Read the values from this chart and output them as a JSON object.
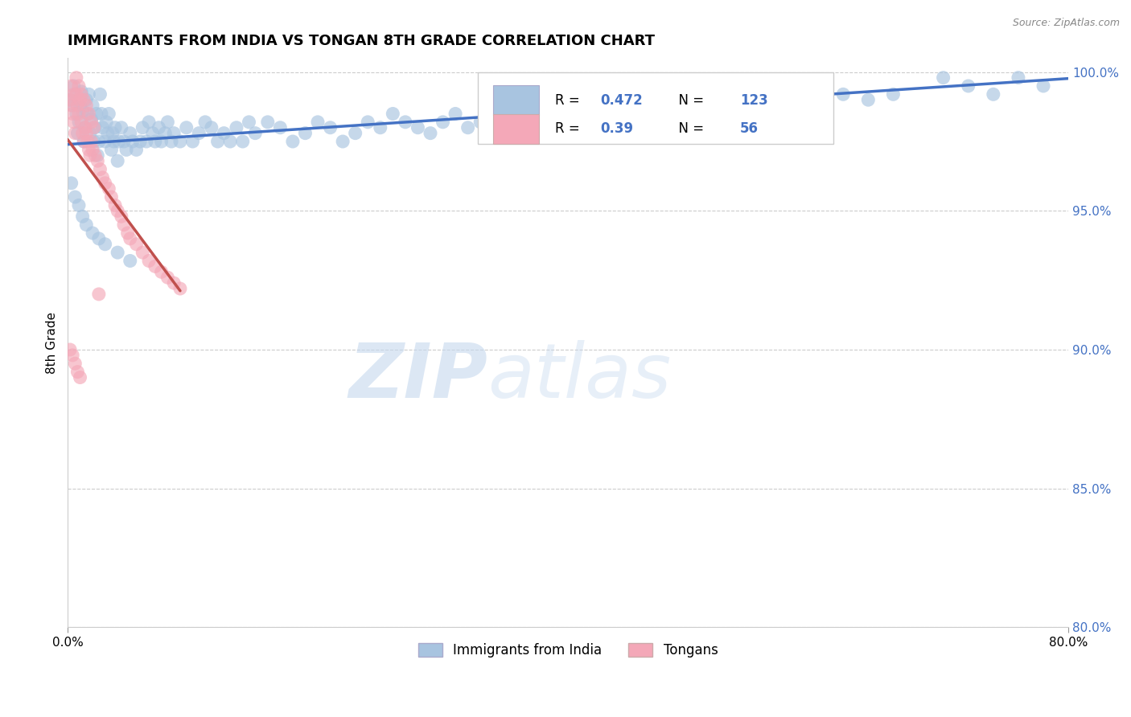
{
  "title": "IMMIGRANTS FROM INDIA VS TONGAN 8TH GRADE CORRELATION CHART",
  "source": "Source: ZipAtlas.com",
  "ylabel": "8th Grade",
  "xlim": [
    0.0,
    0.8
  ],
  "ylim": [
    0.8,
    1.005
  ],
  "x_ticks": [
    0.0,
    0.8
  ],
  "x_tick_labels": [
    "0.0%",
    "80.0%"
  ],
  "y_ticks": [
    0.8,
    0.85,
    0.9,
    0.95,
    1.0
  ],
  "y_tick_labels": [
    "80.0%",
    "85.0%",
    "90.0%",
    "95.0%",
    "100.0%"
  ],
  "india_R": 0.472,
  "india_N": 123,
  "tongan_R": 0.39,
  "tongan_N": 56,
  "india_color": "#a8c4e0",
  "tongan_color": "#f4a8b8",
  "india_line_color": "#4472c4",
  "tongan_line_color": "#c0504d",
  "legend_india_label": "Immigrants from India",
  "legend_tongan_label": "Tongans",
  "watermark_zip": "ZIP",
  "watermark_atlas": "atlas",
  "background_color": "#ffffff",
  "grid_color": "#cccccc",
  "right_axis_color": "#4472c4",
  "india_scatter_x": [
    0.002,
    0.004,
    0.005,
    0.006,
    0.007,
    0.008,
    0.009,
    0.01,
    0.011,
    0.012,
    0.013,
    0.014,
    0.015,
    0.016,
    0.017,
    0.018,
    0.019,
    0.02,
    0.021,
    0.022,
    0.023,
    0.024,
    0.025,
    0.026,
    0.027,
    0.028,
    0.03,
    0.031,
    0.032,
    0.033,
    0.035,
    0.036,
    0.037,
    0.038,
    0.04,
    0.041,
    0.043,
    0.045,
    0.047,
    0.05,
    0.052,
    0.055,
    0.058,
    0.06,
    0.063,
    0.065,
    0.068,
    0.07,
    0.073,
    0.075,
    0.078,
    0.08,
    0.083,
    0.085,
    0.09,
    0.095,
    0.1,
    0.105,
    0.11,
    0.115,
    0.12,
    0.125,
    0.13,
    0.135,
    0.14,
    0.145,
    0.15,
    0.16,
    0.17,
    0.18,
    0.19,
    0.2,
    0.21,
    0.22,
    0.23,
    0.24,
    0.25,
    0.26,
    0.27,
    0.28,
    0.29,
    0.3,
    0.31,
    0.32,
    0.33,
    0.34,
    0.35,
    0.36,
    0.37,
    0.38,
    0.39,
    0.4,
    0.41,
    0.42,
    0.43,
    0.44,
    0.45,
    0.46,
    0.48,
    0.5,
    0.52,
    0.54,
    0.56,
    0.58,
    0.6,
    0.62,
    0.64,
    0.66,
    0.7,
    0.72,
    0.74,
    0.76,
    0.78,
    0.003,
    0.006,
    0.009,
    0.012,
    0.015,
    0.02,
    0.025,
    0.03,
    0.04,
    0.05
  ],
  "india_scatter_y": [
    0.99,
    0.988,
    0.995,
    0.992,
    0.985,
    0.978,
    0.982,
    0.988,
    0.993,
    0.986,
    0.975,
    0.98,
    0.99,
    0.985,
    0.992,
    0.978,
    0.983,
    0.988,
    0.975,
    0.98,
    0.985,
    0.97,
    0.975,
    0.992,
    0.985,
    0.98,
    0.975,
    0.982,
    0.978,
    0.985,
    0.972,
    0.978,
    0.975,
    0.98,
    0.968,
    0.975,
    0.98,
    0.975,
    0.972,
    0.978,
    0.975,
    0.972,
    0.975,
    0.98,
    0.975,
    0.982,
    0.978,
    0.975,
    0.98,
    0.975,
    0.978,
    0.982,
    0.975,
    0.978,
    0.975,
    0.98,
    0.975,
    0.978,
    0.982,
    0.98,
    0.975,
    0.978,
    0.975,
    0.98,
    0.975,
    0.982,
    0.978,
    0.982,
    0.98,
    0.975,
    0.978,
    0.982,
    0.98,
    0.975,
    0.978,
    0.982,
    0.98,
    0.985,
    0.982,
    0.98,
    0.978,
    0.982,
    0.985,
    0.98,
    0.982,
    0.985,
    0.988,
    0.985,
    0.982,
    0.988,
    0.985,
    0.988,
    0.985,
    0.99,
    0.988,
    0.985,
    0.99,
    0.988,
    0.99,
    0.992,
    0.99,
    0.992,
    0.99,
    0.992,
    0.995,
    0.992,
    0.99,
    0.992,
    0.998,
    0.995,
    0.992,
    0.998,
    0.995,
    0.96,
    0.955,
    0.952,
    0.948,
    0.945,
    0.942,
    0.94,
    0.938,
    0.935,
    0.932
  ],
  "tongan_scatter_x": [
    0.002,
    0.003,
    0.004,
    0.005,
    0.006,
    0.007,
    0.008,
    0.009,
    0.01,
    0.011,
    0.012,
    0.013,
    0.014,
    0.015,
    0.016,
    0.017,
    0.018,
    0.019,
    0.02,
    0.022,
    0.024,
    0.026,
    0.028,
    0.03,
    0.033,
    0.035,
    0.038,
    0.04,
    0.043,
    0.045,
    0.048,
    0.05,
    0.055,
    0.06,
    0.065,
    0.07,
    0.075,
    0.08,
    0.085,
    0.09,
    0.003,
    0.005,
    0.007,
    0.009,
    0.011,
    0.013,
    0.015,
    0.017,
    0.019,
    0.021,
    0.025,
    0.002,
    0.004,
    0.006,
    0.008,
    0.01
  ],
  "tongan_scatter_y": [
    0.99,
    0.988,
    0.985,
    0.982,
    0.978,
    0.992,
    0.988,
    0.985,
    0.99,
    0.982,
    0.978,
    0.975,
    0.98,
    0.978,
    0.975,
    0.972,
    0.97,
    0.975,
    0.972,
    0.97,
    0.968,
    0.965,
    0.962,
    0.96,
    0.958,
    0.955,
    0.952,
    0.95,
    0.948,
    0.945,
    0.942,
    0.94,
    0.938,
    0.935,
    0.932,
    0.93,
    0.928,
    0.926,
    0.924,
    0.922,
    0.995,
    0.992,
    0.998,
    0.995,
    0.992,
    0.99,
    0.988,
    0.985,
    0.982,
    0.98,
    0.92,
    0.9,
    0.898,
    0.895,
    0.892,
    0.89
  ]
}
